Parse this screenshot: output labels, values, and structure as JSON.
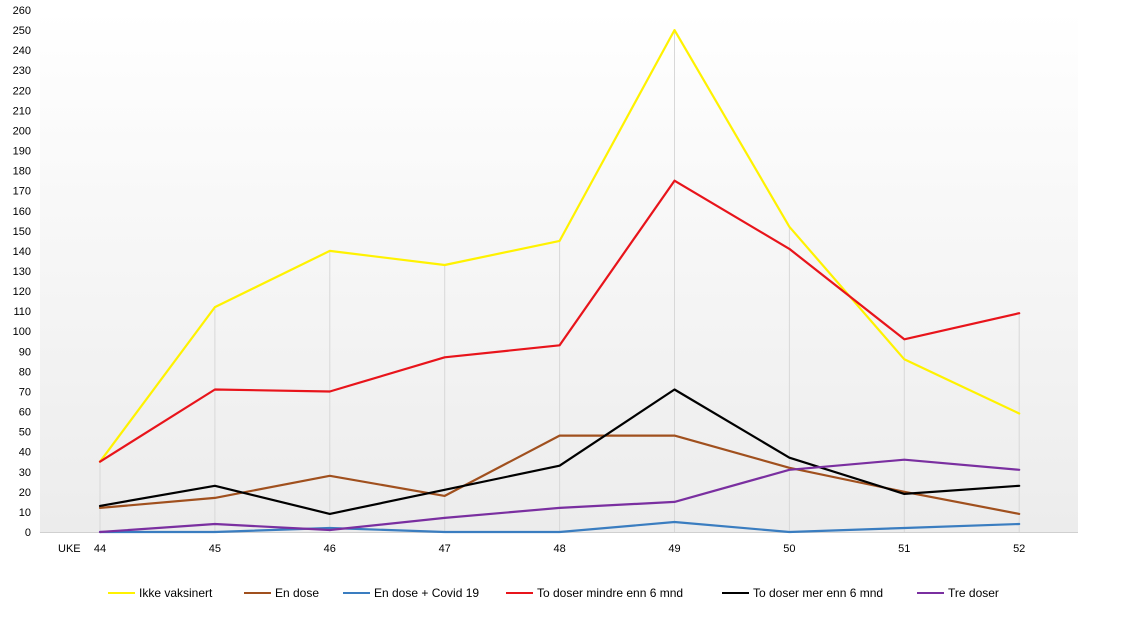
{
  "chart_data": {
    "type": "line",
    "title": "",
    "xlabel": "UKE",
    "ylabel": "",
    "categories": [
      "44",
      "45",
      "46",
      "47",
      "48",
      "49",
      "50",
      "51",
      "52"
    ],
    "ylim": [
      0,
      260
    ],
    "ytick_step": 10,
    "grid": "vertical",
    "legend_placement": "bottom",
    "series": [
      {
        "name": "Ikke vaksinert",
        "color": "#FFF200",
        "values": [
          35,
          112,
          140,
          133,
          145,
          250,
          152,
          86,
          59
        ]
      },
      {
        "name": "En dose",
        "color": "#A0501E",
        "values": [
          12,
          17,
          28,
          18,
          48,
          48,
          32,
          20,
          9
        ]
      },
      {
        "name": "En dose + Covid 19",
        "color": "#3A7DC0",
        "values": [
          0,
          0,
          2,
          0,
          0,
          5,
          0,
          2,
          4
        ]
      },
      {
        "name": "To doser mindre enn 6 mnd",
        "color": "#E8141B",
        "values": [
          35,
          71,
          70,
          87,
          93,
          175,
          141,
          96,
          109
        ]
      },
      {
        "name": "To doser mer enn 6 mnd",
        "color": "#000000",
        "values": [
          13,
          23,
          9,
          21,
          33,
          71,
          37,
          19,
          23
        ]
      },
      {
        "name": "Tre doser",
        "color": "#7A2FA0",
        "values": [
          0,
          4,
          1,
          7,
          12,
          15,
          31,
          36,
          31
        ]
      }
    ]
  }
}
